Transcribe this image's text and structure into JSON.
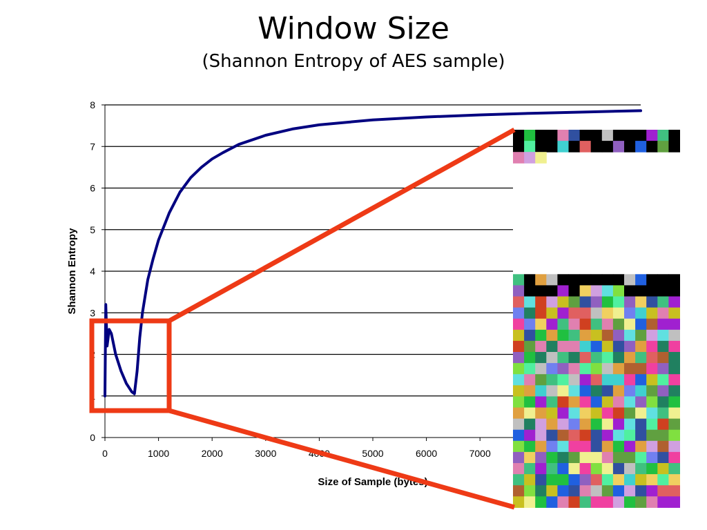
{
  "slide": {
    "title": "Window Size",
    "subtitle": "(Shannon Entropy of AES sample)"
  },
  "chart_data": {
    "type": "line",
    "xlabel": "Size of Sample (bytes)",
    "ylabel": "Shannon Entropy",
    "xlim": [
      0,
      10000
    ],
    "ylim": [
      0,
      8
    ],
    "x_ticks": [
      "0",
      "1000",
      "2000",
      "3000",
      "4000",
      "5000",
      "6000",
      "7000"
    ],
    "y_ticks": [
      "0",
      "1",
      "2",
      "3",
      "4",
      "5",
      "6",
      "7",
      "8"
    ],
    "grid": "horizontal",
    "series": [
      {
        "color": "#000080",
        "x": [
          0,
          16,
          40,
          80,
          120,
          200,
          300,
          400,
          500,
          550,
          600,
          650,
          700,
          750,
          800,
          900,
          1000,
          1200,
          1400,
          1600,
          1800,
          2000,
          2200,
          2500,
          3000,
          3500,
          4000,
          5000,
          6000,
          7000,
          8000,
          9000,
          10000
        ],
        "y": [
          1.0,
          3.2,
          2.2,
          2.6,
          2.5,
          2.0,
          1.6,
          1.3,
          1.1,
          1.05,
          1.6,
          2.4,
          3.0,
          3.4,
          3.8,
          4.3,
          4.75,
          5.4,
          5.9,
          6.25,
          6.5,
          6.7,
          6.85,
          7.05,
          7.27,
          7.42,
          7.52,
          7.64,
          7.71,
          7.76,
          7.8,
          7.83,
          7.86
        ]
      }
    ],
    "annotations": {
      "highlight_box": {
        "color": "#ee3a16"
      },
      "callout_lines": {
        "color": "#ee3a16"
      },
      "inset": "zoomed pixel visualization of sample bytes"
    }
  }
}
